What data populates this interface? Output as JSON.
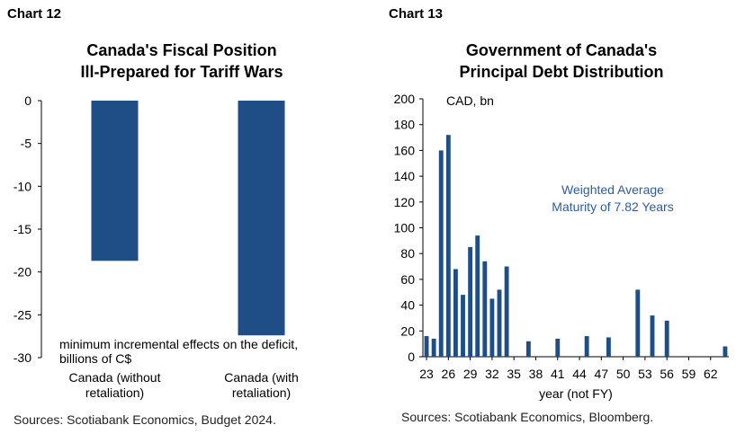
{
  "chart_data": [
    {
      "label": "Chart 12",
      "type": "bar",
      "title": "Canada's Fiscal Position",
      "subtitle": "Ill-Prepared for Tariff Wars",
      "categories": [
        "Canada (without retaliation)",
        "Canada (with retaliation)"
      ],
      "category_lines": [
        [
          "Canada (without",
          "retaliation)"
        ],
        [
          "Canada (with",
          "retaliation)"
        ]
      ],
      "values": [
        -18.7,
        -27.4
      ],
      "ylim": [
        -30,
        0
      ],
      "yticks": [
        0,
        -5,
        -10,
        -15,
        -20,
        -25,
        -30
      ],
      "annotation": "minimum incremental effects on the deficit, billions of C$",
      "annotation_lines": [
        "minimum incremental effects on the deficit,",
        "billions of C$"
      ],
      "source": "Sources: Scotiabank Economics, Budget 2024.",
      "bar_color": "#1f4e86",
      "grid": false
    },
    {
      "label": "Chart 13",
      "type": "bar",
      "title": "Government of Canada's",
      "subtitle": "Principal Debt Distribution",
      "ylabel": "CAD, bn",
      "xlabel": "year (not FY)",
      "x": [
        23,
        24,
        25,
        26,
        27,
        28,
        29,
        30,
        31,
        32,
        33,
        34,
        35,
        36,
        37,
        38,
        39,
        40,
        41,
        42,
        43,
        44,
        45,
        46,
        47,
        48,
        49,
        50,
        51,
        52,
        53,
        54,
        55,
        56,
        57,
        58,
        59,
        60,
        61,
        62,
        63,
        64
      ],
      "values": [
        16,
        14,
        160,
        172,
        68,
        48,
        85,
        94,
        74,
        45,
        52,
        70,
        0,
        0,
        12,
        0,
        0,
        0,
        14,
        0,
        0,
        0,
        16,
        0,
        0,
        15,
        0,
        0,
        0,
        52,
        0,
        32,
        0,
        28,
        0,
        0,
        0,
        0,
        0,
        0,
        0,
        8
      ],
      "xtick_labels": [
        "23",
        "26",
        "29",
        "32",
        "35",
        "38",
        "41",
        "44",
        "47",
        "50",
        "53",
        "56",
        "59",
        "62"
      ],
      "ylim": [
        0,
        200
      ],
      "yticks": [
        0,
        20,
        40,
        60,
        80,
        100,
        120,
        140,
        160,
        180,
        200
      ],
      "annotation_lines": [
        "Weighted Average",
        "Maturity of 7.82 Years"
      ],
      "source": "Sources: Scotiabank Economics, Bloomberg.",
      "bar_color": "#1f4e86",
      "annotation_color": "#2e5d9b",
      "grid": false
    }
  ]
}
